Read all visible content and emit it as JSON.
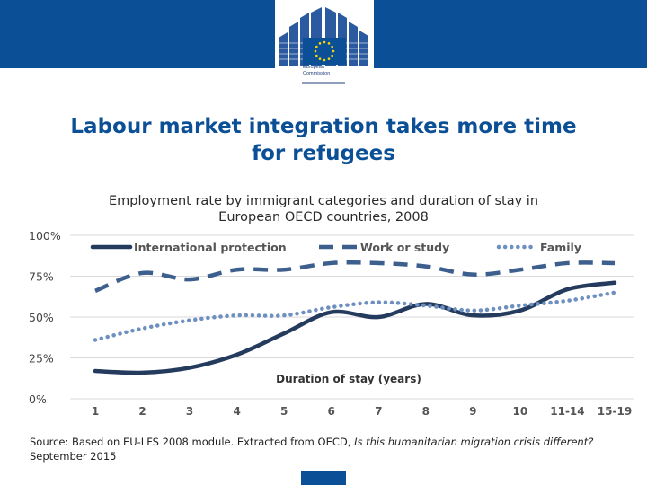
{
  "header": {
    "logo_line1": "European",
    "logo_line2": "Commission"
  },
  "slide": {
    "title_line1": "Labour market integration takes more time",
    "title_line2": "for refugees"
  },
  "colors": {
    "brand": "#0b4f97",
    "series_international": "#243b5e",
    "series_work": "#3d5f8e",
    "series_family": "#6e90c0",
    "grid": "#d9d9d9"
  },
  "chart_data": {
    "type": "line",
    "title_line1": "Employment rate by immigrant categories and duration of stay in",
    "title_line2": "European OECD countries, 2008",
    "xlabel": "Duration of stay (years)",
    "ylabel": "",
    "ylim": [
      0,
      100
    ],
    "yticks": [
      "0%",
      "25%",
      "50%",
      "75%",
      "100%"
    ],
    "categories": [
      "1",
      "2",
      "3",
      "4",
      "5",
      "6",
      "7",
      "8",
      "9",
      "10",
      "11-14",
      "15-19"
    ],
    "legend_position": "top",
    "series": [
      {
        "name": "International protection",
        "style": "solid",
        "values": [
          17,
          16,
          19,
          27,
          40,
          53,
          50,
          58,
          51,
          54,
          67,
          71
        ]
      },
      {
        "name": "Work or study",
        "style": "dash",
        "values": [
          66,
          77,
          73,
          79,
          79,
          83,
          83,
          81,
          76,
          79,
          83,
          83
        ]
      },
      {
        "name": "Family",
        "style": "dot",
        "values": [
          36,
          43,
          48,
          51,
          51,
          56,
          59,
          57,
          54,
          57,
          60,
          65
        ]
      }
    ]
  },
  "footer": {
    "source_prefix": "Source: Based on EU-LFS 2008 module. Extracted from OECD, ",
    "source_italic": "Is this humanitarian migration crisis different?",
    "source_suffix": " September 2015"
  }
}
